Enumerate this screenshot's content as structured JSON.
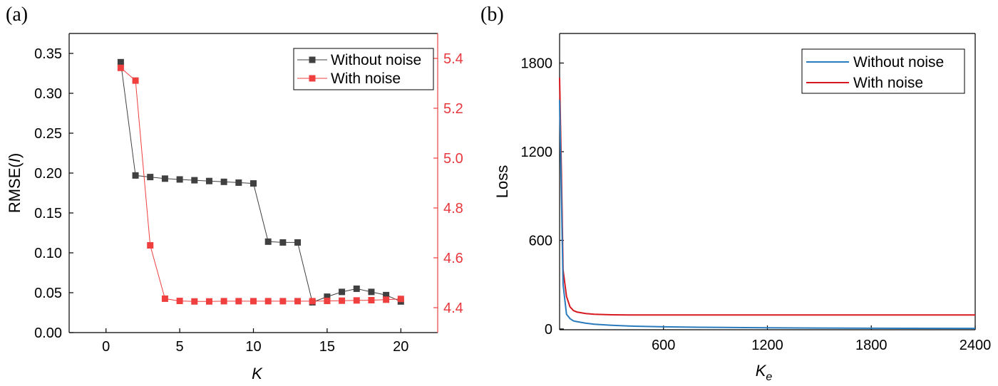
{
  "panels": {
    "a": "(a)",
    "b": "(b)"
  },
  "chart_data": [
    {
      "type": "scatter",
      "xlabel": "K",
      "ylabel": "RMSE(",
      "ylabel_italic": "I",
      "ylabel_end": ")",
      "xlim": [
        -2.5,
        22.5
      ],
      "ylim": [
        0,
        0.375
      ],
      "y2lim": [
        4.3,
        5.5
      ],
      "x_ticks": [
        "0",
        "5",
        "10",
        "15",
        "20"
      ],
      "y_ticks": [
        "0.00",
        "0.05",
        "0.10",
        "0.15",
        "0.20",
        "0.25",
        "0.30",
        "0.35"
      ],
      "y2_ticks": [
        "4.4",
        "4.6",
        "4.8",
        "5.0",
        "5.2",
        "5.4"
      ],
      "legend_position": "top-right",
      "series": [
        {
          "name": "Without noise",
          "axis": "left",
          "color": "#404040",
          "x": [
            1,
            2,
            3,
            4,
            5,
            6,
            7,
            8,
            9,
            10,
            11,
            12,
            13,
            14,
            15,
            16,
            17,
            18,
            19,
            20
          ],
          "values": [
            0.339,
            0.197,
            0.195,
            0.193,
            0.192,
            0.191,
            0.19,
            0.189,
            0.188,
            0.187,
            0.114,
            0.113,
            0.113,
            0.038,
            0.045,
            0.051,
            0.055,
            0.051,
            0.047,
            0.039
          ]
        },
        {
          "name": "With noise",
          "axis": "right",
          "color": "#ef3f3f",
          "x": [
            1,
            2,
            3,
            4,
            5,
            6,
            7,
            8,
            9,
            10,
            11,
            12,
            13,
            14,
            15,
            16,
            17,
            18,
            19,
            20
          ],
          "values": [
            5.362,
            5.311,
            4.65,
            4.436,
            4.427,
            4.425,
            4.425,
            4.426,
            4.426,
            4.426,
            4.426,
            4.426,
            4.426,
            4.426,
            4.427,
            4.428,
            4.429,
            4.43,
            4.432,
            4.435
          ]
        }
      ]
    },
    {
      "type": "line",
      "xlabel": "K",
      "xlabel_sub": "e",
      "ylabel": "Loss",
      "xlim": [
        0,
        2400
      ],
      "ylim": [
        -5,
        2000
      ],
      "x_ticks": [
        "600",
        "1200",
        "1800",
        "2400"
      ],
      "y_ticks": [
        "0",
        "600",
        "1200",
        "1800"
      ],
      "legend_position": "top-right",
      "series": [
        {
          "name": "Without noise",
          "color": "#2a7bbd",
          "x": [
            0,
            20,
            40,
            60,
            80,
            100,
            150,
            200,
            300,
            400,
            600,
            800,
            1200,
            1800,
            2400
          ],
          "values": [
            1550,
            300,
            100,
            70,
            55,
            50,
            40,
            32,
            25,
            20,
            15,
            12,
            8,
            5,
            4
          ]
        },
        {
          "name": "With noise",
          "color": "#d7191f",
          "x": [
            0,
            10,
            20,
            40,
            60,
            80,
            100,
            150,
            200,
            300,
            400,
            600,
            800,
            1200,
            1800,
            2400
          ],
          "values": [
            1700,
            1100,
            400,
            220,
            150,
            125,
            115,
            105,
            100,
            96,
            95,
            95,
            95,
            95,
            95,
            95
          ]
        }
      ]
    }
  ]
}
